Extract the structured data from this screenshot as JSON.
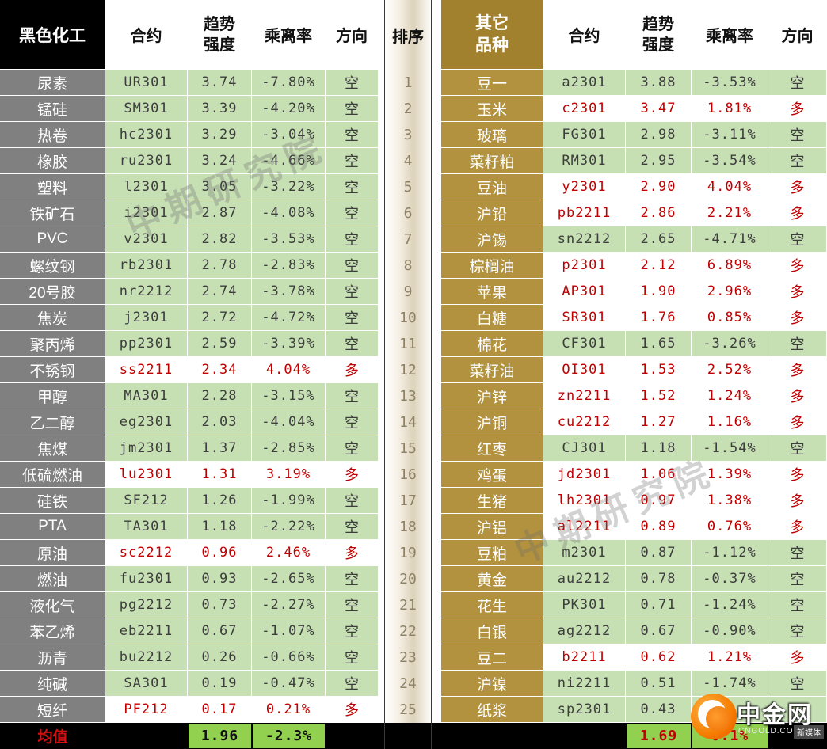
{
  "chart_data": [
    {
      "type": "table",
      "title": "黑色化工",
      "columns": {
        "contract": "合约",
        "strength": "趋势强度",
        "deviation": "乘离率",
        "direction": "方向"
      },
      "rows": [
        {
          "variety": "尿素",
          "contract": "UR301",
          "strength": "3.74",
          "deviation": "-7.80%",
          "direction": "空"
        },
        {
          "variety": "锰硅",
          "contract": "SM301",
          "strength": "3.39",
          "deviation": "-4.20%",
          "direction": "空"
        },
        {
          "variety": "热卷",
          "contract": "hc2301",
          "strength": "3.29",
          "deviation": "-3.04%",
          "direction": "空"
        },
        {
          "variety": "橡胶",
          "contract": "ru2301",
          "strength": "3.24",
          "deviation": "-4.66%",
          "direction": "空"
        },
        {
          "variety": "塑料",
          "contract": "l2301",
          "strength": "3.05",
          "deviation": "-3.22%",
          "direction": "空"
        },
        {
          "variety": "铁矿石",
          "contract": "i2301",
          "strength": "2.87",
          "deviation": "-4.08%",
          "direction": "空"
        },
        {
          "variety": "PVC",
          "contract": "v2301",
          "strength": "2.82",
          "deviation": "-3.53%",
          "direction": "空"
        },
        {
          "variety": "螺纹钢",
          "contract": "rb2301",
          "strength": "2.78",
          "deviation": "-2.83%",
          "direction": "空"
        },
        {
          "variety": "20号胶",
          "contract": "nr2212",
          "strength": "2.74",
          "deviation": "-3.78%",
          "direction": "空"
        },
        {
          "variety": "焦炭",
          "contract": "j2301",
          "strength": "2.72",
          "deviation": "-4.72%",
          "direction": "空"
        },
        {
          "variety": "聚丙烯",
          "contract": "pp2301",
          "strength": "2.59",
          "deviation": "-3.39%",
          "direction": "空"
        },
        {
          "variety": "不锈钢",
          "contract": "ss2211",
          "strength": "2.34",
          "deviation": "4.04%",
          "direction": "多"
        },
        {
          "variety": "甲醇",
          "contract": "MA301",
          "strength": "2.28",
          "deviation": "-3.15%",
          "direction": "空"
        },
        {
          "variety": "乙二醇",
          "contract": "eg2301",
          "strength": "2.03",
          "deviation": "-4.04%",
          "direction": "空"
        },
        {
          "variety": "焦煤",
          "contract": "jm2301",
          "strength": "1.37",
          "deviation": "-2.85%",
          "direction": "空"
        },
        {
          "variety": "低硫燃油",
          "contract": "lu2301",
          "strength": "1.31",
          "deviation": "3.19%",
          "direction": "多"
        },
        {
          "variety": "硅铁",
          "contract": "SF212",
          "strength": "1.26",
          "deviation": "-1.99%",
          "direction": "空"
        },
        {
          "variety": "PTA",
          "contract": "TA301",
          "strength": "1.18",
          "deviation": "-2.22%",
          "direction": "空"
        },
        {
          "variety": "原油",
          "contract": "sc2212",
          "strength": "0.96",
          "deviation": "2.46%",
          "direction": "多"
        },
        {
          "variety": "燃油",
          "contract": "fu2301",
          "strength": "0.93",
          "deviation": "-2.65%",
          "direction": "空"
        },
        {
          "variety": "液化气",
          "contract": "pg2212",
          "strength": "0.73",
          "deviation": "-2.27%",
          "direction": "空"
        },
        {
          "variety": "苯乙烯",
          "contract": "eb2211",
          "strength": "0.67",
          "deviation": "-1.07%",
          "direction": "空"
        },
        {
          "variety": "沥青",
          "contract": "bu2212",
          "strength": "0.26",
          "deviation": "-0.66%",
          "direction": "空"
        },
        {
          "variety": "纯碱",
          "contract": "SA301",
          "strength": "0.19",
          "deviation": "-0.47%",
          "direction": "空"
        },
        {
          "variety": "短纤",
          "contract": "PF212",
          "strength": "0.17",
          "deviation": "0.21%",
          "direction": "多"
        }
      ],
      "footer": {
        "label": "均值",
        "strength": "1.96",
        "deviation": "-2.3%"
      }
    },
    {
      "type": "table",
      "title": "其它品种",
      "columns": {
        "contract": "合约",
        "strength": "趋势强度",
        "deviation": "乘离率",
        "direction": "方向"
      },
      "rows": [
        {
          "variety": "豆一",
          "contract": "a2301",
          "strength": "3.88",
          "deviation": "-3.53%",
          "direction": "空"
        },
        {
          "variety": "玉米",
          "contract": "c2301",
          "strength": "3.47",
          "deviation": "1.81%",
          "direction": "多"
        },
        {
          "variety": "玻璃",
          "contract": "FG301",
          "strength": "2.98",
          "deviation": "-3.11%",
          "direction": "空"
        },
        {
          "variety": "菜籽粕",
          "contract": "RM301",
          "strength": "2.95",
          "deviation": "-3.54%",
          "direction": "空"
        },
        {
          "variety": "豆油",
          "contract": "y2301",
          "strength": "2.90",
          "deviation": "4.04%",
          "direction": "多"
        },
        {
          "variety": "沪铅",
          "contract": "pb2211",
          "strength": "2.86",
          "deviation": "2.21%",
          "direction": "多"
        },
        {
          "variety": "沪锡",
          "contract": "sn2212",
          "strength": "2.65",
          "deviation": "-4.71%",
          "direction": "空"
        },
        {
          "variety": "棕榈油",
          "contract": "p2301",
          "strength": "2.12",
          "deviation": "6.89%",
          "direction": "多"
        },
        {
          "variety": "苹果",
          "contract": "AP301",
          "strength": "1.90",
          "deviation": "2.96%",
          "direction": "多"
        },
        {
          "variety": "白糖",
          "contract": "SR301",
          "strength": "1.76",
          "deviation": "0.85%",
          "direction": "多"
        },
        {
          "variety": "棉花",
          "contract": "CF301",
          "strength": "1.65",
          "deviation": "-3.26%",
          "direction": "空"
        },
        {
          "variety": "菜籽油",
          "contract": "OI301",
          "strength": "1.53",
          "deviation": "2.52%",
          "direction": "多"
        },
        {
          "variety": "沪锌",
          "contract": "zn2211",
          "strength": "1.52",
          "deviation": "1.24%",
          "direction": "多"
        },
        {
          "variety": "沪铜",
          "contract": "cu2212",
          "strength": "1.27",
          "deviation": "1.16%",
          "direction": "多"
        },
        {
          "variety": "红枣",
          "contract": "CJ301",
          "strength": "1.18",
          "deviation": "-1.54%",
          "direction": "空"
        },
        {
          "variety": "鸡蛋",
          "contract": "jd2301",
          "strength": "1.06",
          "deviation": "1.39%",
          "direction": "多"
        },
        {
          "variety": "生猪",
          "contract": "lh2301",
          "strength": "0.97",
          "deviation": "1.38%",
          "direction": "多"
        },
        {
          "variety": "沪铝",
          "contract": "al2211",
          "strength": "0.89",
          "deviation": "0.76%",
          "direction": "多"
        },
        {
          "variety": "豆粕",
          "contract": "m2301",
          "strength": "0.87",
          "deviation": "-1.12%",
          "direction": "空"
        },
        {
          "variety": "黄金",
          "contract": "au2212",
          "strength": "0.78",
          "deviation": "-0.37%",
          "direction": "空"
        },
        {
          "variety": "花生",
          "contract": "PK301",
          "strength": "0.71",
          "deviation": "-1.24%",
          "direction": "空"
        },
        {
          "variety": "白银",
          "contract": "ag2212",
          "strength": "0.67",
          "deviation": "-0.90%",
          "direction": "空"
        },
        {
          "variety": "豆二",
          "contract": "b2211",
          "strength": "0.62",
          "deviation": "1.21%",
          "direction": "多"
        },
        {
          "variety": "沪镍",
          "contract": "ni2211",
          "strength": "0.51",
          "deviation": "-1.74%",
          "direction": "空"
        },
        {
          "variety": "纸浆",
          "contract": "sp2301",
          "strength": "0.43",
          "deviation": "",
          "direction": ""
        }
      ],
      "footer": {
        "label": "",
        "strength": "1.69",
        "deviation": "0.1%"
      }
    }
  ],
  "rank": {
    "header": "排序",
    "values": [
      "1",
      "2",
      "3",
      "4",
      "5",
      "6",
      "7",
      "8",
      "9",
      "10",
      "11",
      "12",
      "13",
      "14",
      "15",
      "16",
      "17",
      "18",
      "19",
      "20",
      "21",
      "22",
      "23",
      "24",
      "25"
    ]
  },
  "watermark": {
    "text": "中期研究院"
  },
  "logo": {
    "brand": "中金网",
    "domain": "CNGOLD.COM.CN",
    "tag": "新媒体"
  },
  "colors": {
    "short_row": "#c6e0b4",
    "long_text": "#c00000",
    "avg_cell": "#92d050",
    "left_name": "#808080",
    "right_name": "#b2923f",
    "right_header": "#a1812e"
  }
}
